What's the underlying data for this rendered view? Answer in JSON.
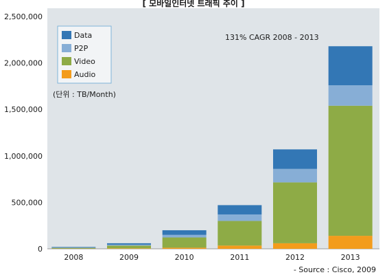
{
  "chart_data": {
    "type": "bar",
    "stacked": true,
    "title": "[ 모바일인터넷 트래픽 추이 ]",
    "unit_label": "(단위 : TB/Month)",
    "annotation": "131% CAGR 2008 - 2013",
    "source": "- Source : Cisco, 2009",
    "categories": [
      "2008",
      "2009",
      "2010",
      "2011",
      "2012",
      "2013"
    ],
    "y_ticks": [
      "0",
      "500,000",
      "1,000,000",
      "1,500,000",
      "2,000,000",
      "2,500,000"
    ],
    "ylim": [
      0,
      2500000
    ],
    "grid": false,
    "legend_position": "top-left",
    "series": [
      {
        "name": "Audio",
        "color": "#f39c1c",
        "values": [
          2000,
          5000,
          12000,
          35000,
          60000,
          140000
        ]
      },
      {
        "name": "Video",
        "color": "#8eab46",
        "values": [
          8000,
          30000,
          110000,
          265000,
          655000,
          1400000
        ]
      },
      {
        "name": "P2P",
        "color": "#87aed6",
        "values": [
          3000,
          10000,
          28000,
          70000,
          145000,
          220000
        ]
      },
      {
        "name": "Data",
        "color": "#3377b5",
        "values": [
          7000,
          15000,
          50000,
          100000,
          210000,
          420000
        ]
      }
    ],
    "legend_order": [
      "Data",
      "P2P",
      "Video",
      "Audio"
    ]
  }
}
